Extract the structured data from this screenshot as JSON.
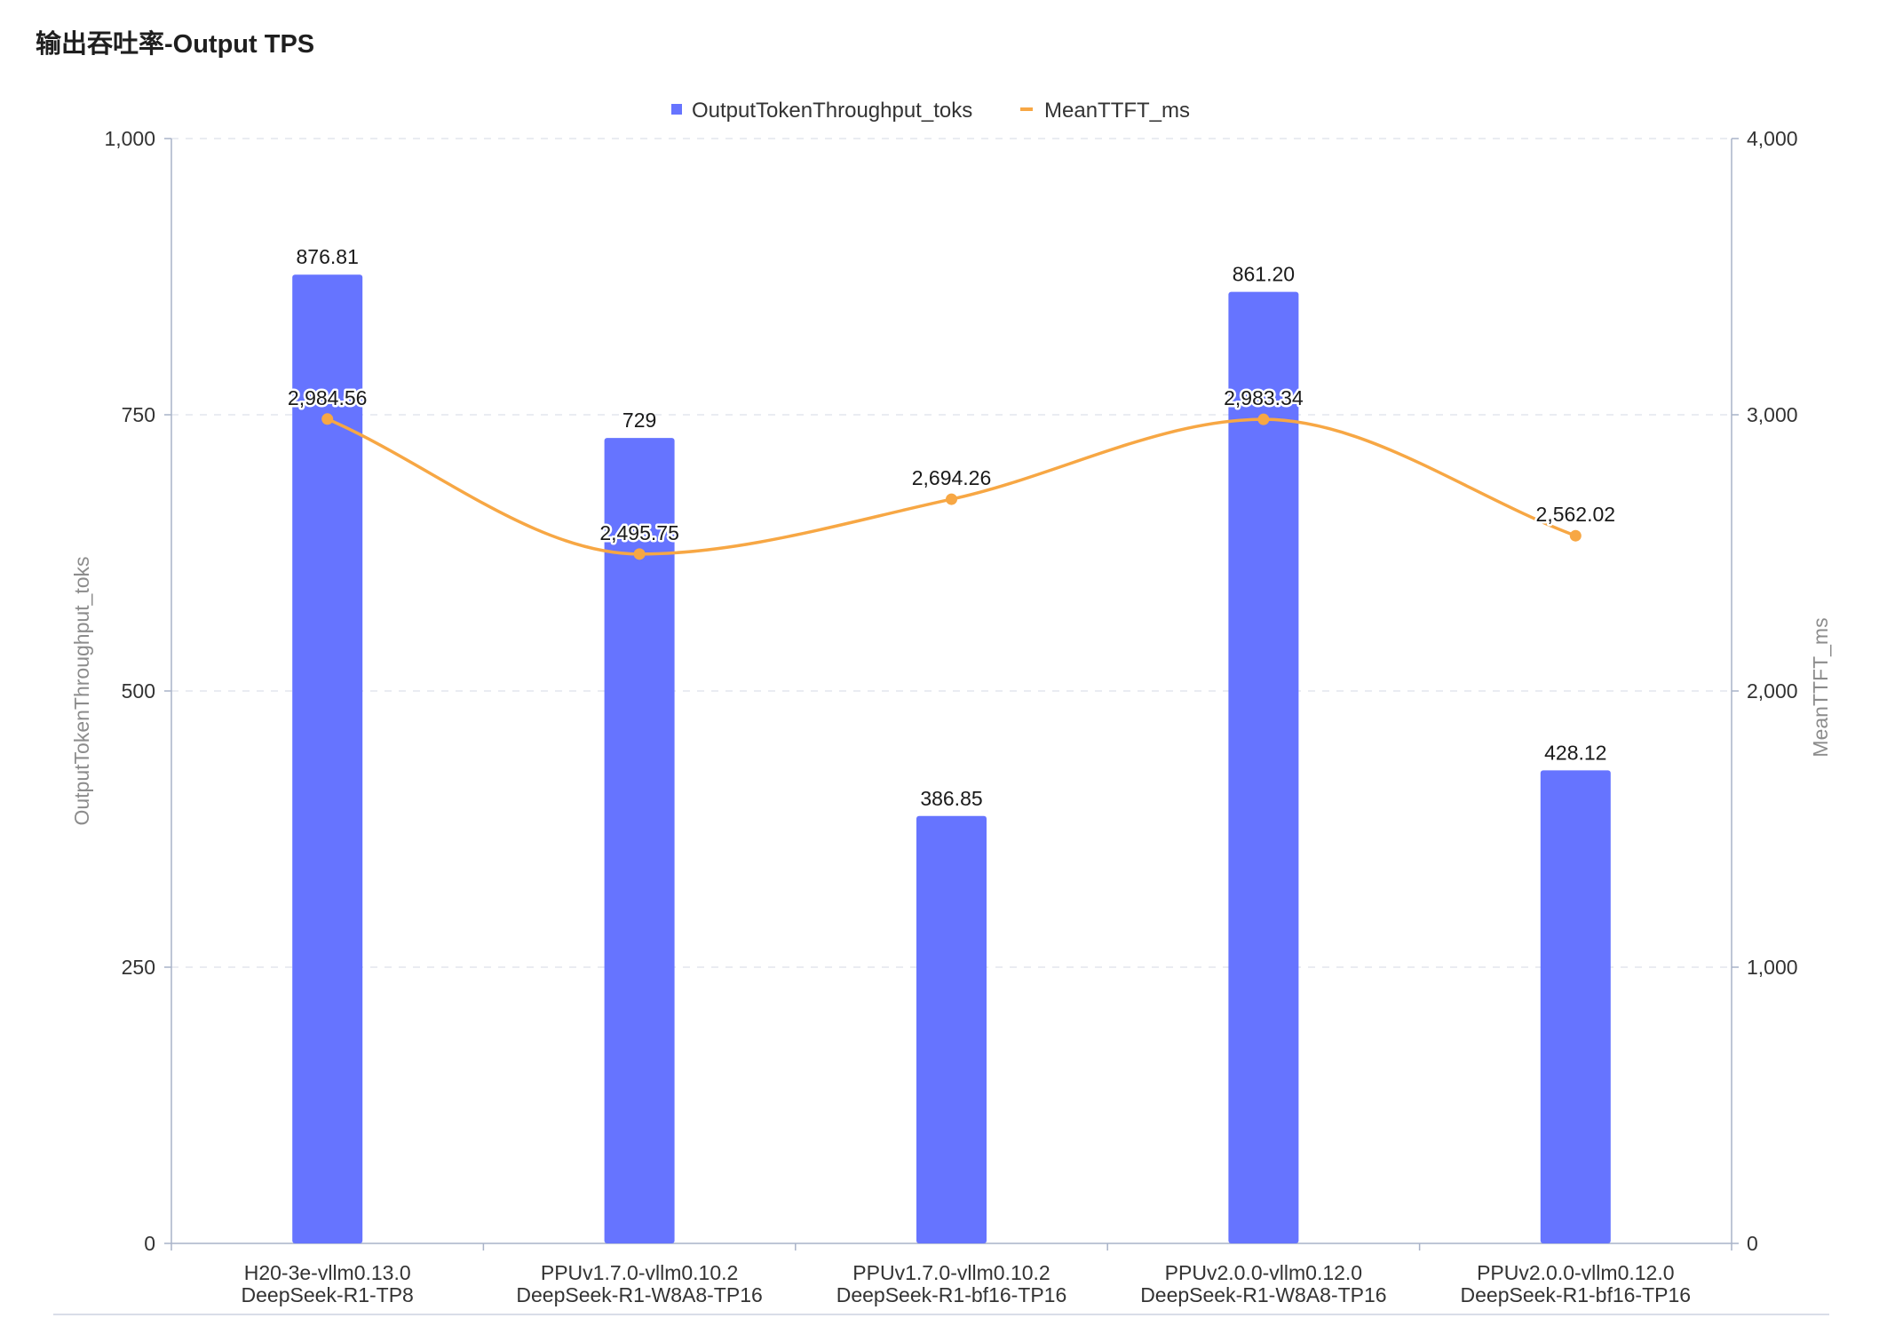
{
  "panel_title": "输出吞吐率-Output TPS",
  "chart_data": {
    "type": "bar+line",
    "title": "",
    "categories": [
      [
        "H20-3e-vllm0.13.0",
        "DeepSeek-R1-TP8"
      ],
      [
        "PPUv1.7.0-vllm0.10.2",
        "DeepSeek-R1-W8A8-TP16"
      ],
      [
        "PPUv1.7.0-vllm0.10.2",
        "DeepSeek-R1-bf16-TP16"
      ],
      [
        "PPUv2.0.0-vllm0.12.0",
        "DeepSeek-R1-W8A8-TP16"
      ],
      [
        "PPUv2.0.0-vllm0.12.0",
        "DeepSeek-R1-bf16-TP16"
      ]
    ],
    "series": [
      {
        "name": "OutputTokenThroughput_toks",
        "type": "bar",
        "axis": "left",
        "color": "#6674ff",
        "values": [
          876.81,
          729,
          386.85,
          861.2,
          428.12
        ],
        "labels": [
          "876.81",
          "729",
          "386.85",
          "861.20",
          "428.12"
        ]
      },
      {
        "name": "MeanTTFT_ms",
        "type": "line",
        "axis": "right",
        "color": "#f7a744",
        "values": [
          2984.56,
          2495.75,
          2694.26,
          2983.34,
          2562.02
        ],
        "labels": [
          "2,984.56",
          "2,495.75",
          "2,694.26",
          "2,983.34",
          "2,562.02"
        ]
      }
    ],
    "y_left": {
      "label": "OutputTokenThroughput_toks",
      "ylim": [
        0,
        1000
      ],
      "ticks": [
        0,
        250,
        500,
        750,
        1000
      ],
      "tick_labels": [
        "0",
        "250",
        "500",
        "750",
        "1,000"
      ]
    },
    "y_right": {
      "label": "MeanTTFT_ms",
      "ylim": [
        0,
        4000
      ],
      "ticks": [
        0,
        1000,
        2000,
        3000,
        4000
      ],
      "tick_labels": [
        "0",
        "1,000",
        "2,000",
        "3,000",
        "4,000"
      ]
    },
    "grid": "horizontal dashed",
    "legend": "top-center"
  }
}
